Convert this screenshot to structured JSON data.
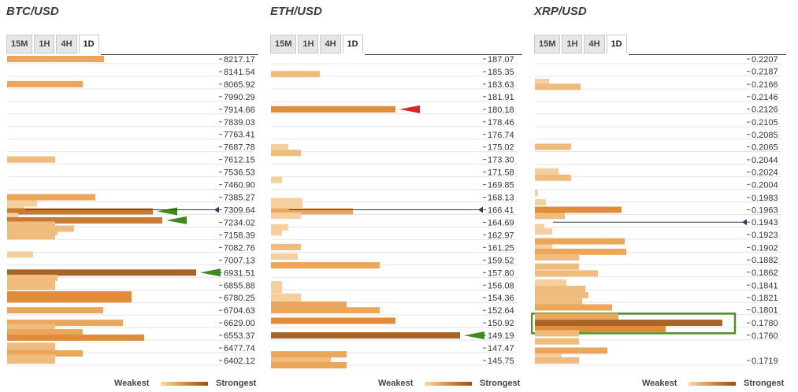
{
  "legend": {
    "weakest": "Weakest",
    "strongest": "Strongest"
  },
  "colors": {
    "c1": "#f5cf9e",
    "c2": "#f0bc7e",
    "c3": "#eca65c",
    "c4": "#e08c3a",
    "c5": "#c97a35",
    "c6": "#a86424",
    "green_arrow": "#3d8b1e",
    "red_arrow": "#e02424",
    "price_line": "#2b3c5c",
    "highlight": "#4f8f2a"
  },
  "chart_data": [
    {
      "type": "bar",
      "title": "BTC/USD",
      "tabs": [
        "15M",
        "1H",
        "4H",
        "1D"
      ],
      "active_tab": "1D",
      "price_labels": [
        "8217.17",
        "8141.54",
        "8065.92",
        "7990.29",
        "7914.66",
        "7839.03",
        "7763.41",
        "7687.78",
        "7612.15",
        "7536.53",
        "7460.90",
        "7385.27",
        "7309.64",
        "7234.02",
        "7158.39",
        "7082.76",
        "7007.13",
        "6931.51",
        "6855.88",
        "6780.25",
        "6704.63",
        "6629.00",
        "6553.37",
        "6477.74",
        "6402.12"
      ],
      "current_price_level": 7309.64,
      "bars": [
        {
          "level": 8217.17,
          "value": 123,
          "strength": 3
        },
        {
          "level": 8065.92,
          "value": 96,
          "strength": 3
        },
        {
          "level": 7612.15,
          "value": 61,
          "strength": 2
        },
        {
          "level": 7385.27,
          "value": 112,
          "strength": 3
        },
        {
          "level": 7347.46,
          "value": 38,
          "strength": 1
        },
        {
          "level": 7328.55,
          "value": 22,
          "strength": 1
        },
        {
          "level": 7300.0,
          "value": 185,
          "strength": 5,
          "arrow": "green"
        },
        {
          "level": 7271.83,
          "value": 14,
          "strength": 1
        },
        {
          "level": 7246.0,
          "value": 197,
          "strength": 5,
          "arrow": "green"
        },
        {
          "level": 7220.0,
          "value": 61,
          "strength": 2
        },
        {
          "level": 7196.21,
          "value": 85,
          "strength": 2
        },
        {
          "level": 7175.0,
          "value": 64,
          "strength": 2
        },
        {
          "level": 7150.0,
          "value": 61,
          "strength": 2
        },
        {
          "level": 7040.0,
          "value": 33,
          "strength": 1
        },
        {
          "level": 6931.51,
          "value": 240,
          "strength": 6,
          "arrow": "green"
        },
        {
          "level": 6900.0,
          "value": 64,
          "strength": 2
        },
        {
          "level": 6870.0,
          "value": 61,
          "strength": 2
        },
        {
          "level": 6845.0,
          "value": 61,
          "strength": 2
        },
        {
          "level": 6800.0,
          "value": 158,
          "strength": 4
        },
        {
          "level": 6770.0,
          "value": 158,
          "strength": 4
        },
        {
          "level": 6704.63,
          "value": 122,
          "strength": 3
        },
        {
          "level": 6629.0,
          "value": 147,
          "strength": 3
        },
        {
          "level": 6604.0,
          "value": 61,
          "strength": 2
        },
        {
          "level": 6572.28,
          "value": 96,
          "strength": 3
        },
        {
          "level": 6540.0,
          "value": 174,
          "strength": 4
        },
        {
          "level": 6490.0,
          "value": 61,
          "strength": 2
        },
        {
          "level": 6467.0,
          "value": 61,
          "strength": 2
        },
        {
          "level": 6445.0,
          "value": 96,
          "strength": 3
        },
        {
          "level": 6420.0,
          "value": 61,
          "strength": 2
        },
        {
          "level": 6402.12,
          "value": 61,
          "strength": 2
        }
      ]
    },
    {
      "type": "bar",
      "title": "ETH/USD",
      "tabs": [
        "15M",
        "1H",
        "4H",
        "1D"
      ],
      "active_tab": "1D",
      "price_labels": [
        "187.07",
        "185.35",
        "183.63",
        "181.91",
        "180.18",
        "178.46",
        "176.74",
        "175.02",
        "173.30",
        "171.58",
        "169.85",
        "168.13",
        "166.41",
        "164.69",
        "162.97",
        "161.25",
        "159.52",
        "157.80",
        "156.08",
        "154.36",
        "152.64",
        "150.92",
        "149.19",
        "147.47",
        "145.75"
      ],
      "current_price_level": 166.41,
      "bars": [
        {
          "level": 185.0,
          "value": 62,
          "strength": 2
        },
        {
          "level": 180.18,
          "value": 158,
          "strength": 4,
          "arrow": "red"
        },
        {
          "level": 175.0,
          "value": 22,
          "strength": 1
        },
        {
          "level": 174.2,
          "value": 38,
          "strength": 2
        },
        {
          "level": 170.5,
          "value": 14,
          "strength": 1
        },
        {
          "level": 167.6,
          "value": 40,
          "strength": 1
        },
        {
          "level": 167.1,
          "value": 40,
          "strength": 1
        },
        {
          "level": 166.2,
          "value": 104,
          "strength": 3
        },
        {
          "level": 165.6,
          "value": 38,
          "strength": 1
        },
        {
          "level": 164.0,
          "value": 22,
          "strength": 1
        },
        {
          "level": 163.3,
          "value": 14,
          "strength": 1
        },
        {
          "level": 161.3,
          "value": 38,
          "strength": 2
        },
        {
          "level": 160.0,
          "value": 34,
          "strength": 1
        },
        {
          "level": 158.8,
          "value": 138,
          "strength": 3
        },
        {
          "level": 156.2,
          "value": 14,
          "strength": 1
        },
        {
          "level": 155.4,
          "value": 14,
          "strength": 1
        },
        {
          "level": 154.5,
          "value": 38,
          "strength": 1
        },
        {
          "level": 154.0,
          "value": 38,
          "strength": 1
        },
        {
          "level": 153.4,
          "value": 96,
          "strength": 3
        },
        {
          "level": 152.64,
          "value": 138,
          "strength": 3
        },
        {
          "level": 151.2,
          "value": 158,
          "strength": 4
        },
        {
          "level": 149.19,
          "value": 240,
          "strength": 6,
          "arrow": "green"
        },
        {
          "level": 146.6,
          "value": 96,
          "strength": 3
        },
        {
          "level": 145.75,
          "value": 76,
          "strength": 2
        },
        {
          "level": 145.1,
          "value": 96,
          "strength": 3
        }
      ]
    },
    {
      "type": "bar",
      "title": "XRP/USD",
      "tabs": [
        "15M",
        "1H",
        "4H",
        "1D"
      ],
      "active_tab": "1D",
      "price_labels": [
        "0.2207",
        "0.2187",
        "0.2166",
        "0.2146",
        "0.2126",
        "0.2105",
        "0.2085",
        "0.2065",
        "0.2044",
        "0.2024",
        "0.2004",
        "0.1983",
        "0.1963",
        "0.1943",
        "0.1923",
        "0.1902",
        "0.1882",
        "0.1862",
        "0.1841",
        "0.1821",
        "0.1801",
        "0.1780",
        "0.1760",
        "0.1719"
      ],
      "current_price_level": 0.1943,
      "highlight_range": [
        0.1772,
        0.1786
      ],
      "bars": [
        {
          "level": 0.217,
          "value": 18,
          "strength": 1
        },
        {
          "level": 0.2162,
          "value": 58,
          "strength": 2
        },
        {
          "level": 0.2065,
          "value": 46,
          "strength": 2
        },
        {
          "level": 0.2025,
          "value": 30,
          "strength": 1
        },
        {
          "level": 0.2015,
          "value": 46,
          "strength": 2
        },
        {
          "level": 0.199,
          "value": 4,
          "strength": 1
        },
        {
          "level": 0.1975,
          "value": 14,
          "strength": 1
        },
        {
          "level": 0.1963,
          "value": 110,
          "strength": 4
        },
        {
          "level": 0.1953,
          "value": 38,
          "strength": 2
        },
        {
          "level": 0.1935,
          "value": 12,
          "strength": 1
        },
        {
          "level": 0.1928,
          "value": 22,
          "strength": 1
        },
        {
          "level": 0.1912,
          "value": 114,
          "strength": 3
        },
        {
          "level": 0.1902,
          "value": 22,
          "strength": 1
        },
        {
          "level": 0.1895,
          "value": 116,
          "strength": 3
        },
        {
          "level": 0.1886,
          "value": 56,
          "strength": 2
        },
        {
          "level": 0.1871,
          "value": 56,
          "strength": 2
        },
        {
          "level": 0.186,
          "value": 80,
          "strength": 2
        },
        {
          "level": 0.1845,
          "value": 40,
          "strength": 1
        },
        {
          "level": 0.1835,
          "value": 64,
          "strength": 2
        },
        {
          "level": 0.1825,
          "value": 68,
          "strength": 2
        },
        {
          "level": 0.1815,
          "value": 60,
          "strength": 2
        },
        {
          "level": 0.1805,
          "value": 98,
          "strength": 3
        },
        {
          "level": 0.179,
          "value": 106,
          "strength": 3
        },
        {
          "level": 0.178,
          "value": 238,
          "strength": 6
        },
        {
          "level": 0.177,
          "value": 166,
          "strength": 4
        },
        {
          "level": 0.1763,
          "value": 56,
          "strength": 2
        },
        {
          "level": 0.175,
          "value": 56,
          "strength": 2
        },
        {
          "level": 0.1735,
          "value": 92,
          "strength": 3
        },
        {
          "level": 0.1725,
          "value": 34,
          "strength": 1
        },
        {
          "level": 0.1719,
          "value": 56,
          "strength": 2
        }
      ]
    }
  ]
}
